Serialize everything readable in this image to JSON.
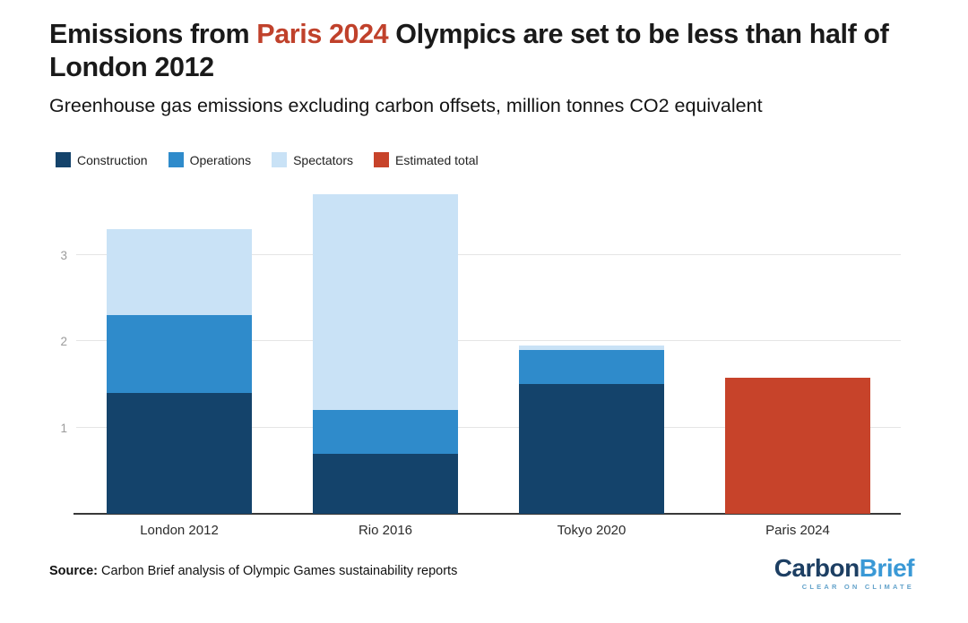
{
  "header": {
    "title_prefix": "Emissions from ",
    "title_highlight": "Paris 2024",
    "title_suffix": " Olympics are set to be less than half of",
    "title_line2": "London 2012",
    "subtitle": "Greenhouse gas emissions excluding carbon offsets, million tonnes CO2 equivalent"
  },
  "chart_data": {
    "type": "bar",
    "stacked": true,
    "title": "Emissions from Paris 2024 Olympics are set to be less than half of London 2012",
    "subtitle": "Greenhouse gas emissions excluding carbon offsets, million tonnes CO2 equivalent",
    "categories": [
      "London 2012",
      "Rio 2016",
      "Tokyo 2020",
      "Paris 2024"
    ],
    "series": [
      {
        "name": "Construction",
        "color": "#14436b",
        "values": [
          1.4,
          0.7,
          1.5,
          0
        ]
      },
      {
        "name": "Operations",
        "color": "#2f8bcb",
        "values": [
          0.9,
          0.5,
          0.4,
          0
        ]
      },
      {
        "name": "Spectators",
        "color": "#c9e2f6",
        "values": [
          1.0,
          2.5,
          0.05,
          0
        ]
      },
      {
        "name": "Estimated total",
        "color": "#c7432a",
        "values": [
          0,
          0,
          0,
          1.58
        ]
      }
    ],
    "totals": {
      "London 2012": 3.3,
      "Rio 2016": 3.7,
      "Tokyo 2020": 1.95,
      "Paris 2024": 1.58
    },
    "xlabel": "",
    "ylabel": "million tonnes CO2 equivalent",
    "ylim": [
      0,
      3.88
    ],
    "yticks": [
      1,
      2,
      3
    ],
    "grid": true,
    "legend_position": "top"
  },
  "footer": {
    "source_label": "Source:",
    "source_text": " Carbon Brief analysis of Olympic Games sustainability reports",
    "logo_part1": "Carbon",
    "logo_part2": "Brief",
    "logo_tagline": "CLEAR ON CLIMATE"
  },
  "colors": {
    "title_highlight": "#c0412b",
    "axis_line": "#383838",
    "gridline": "#e5e5e5",
    "tick_label": "#9b9b9b"
  }
}
